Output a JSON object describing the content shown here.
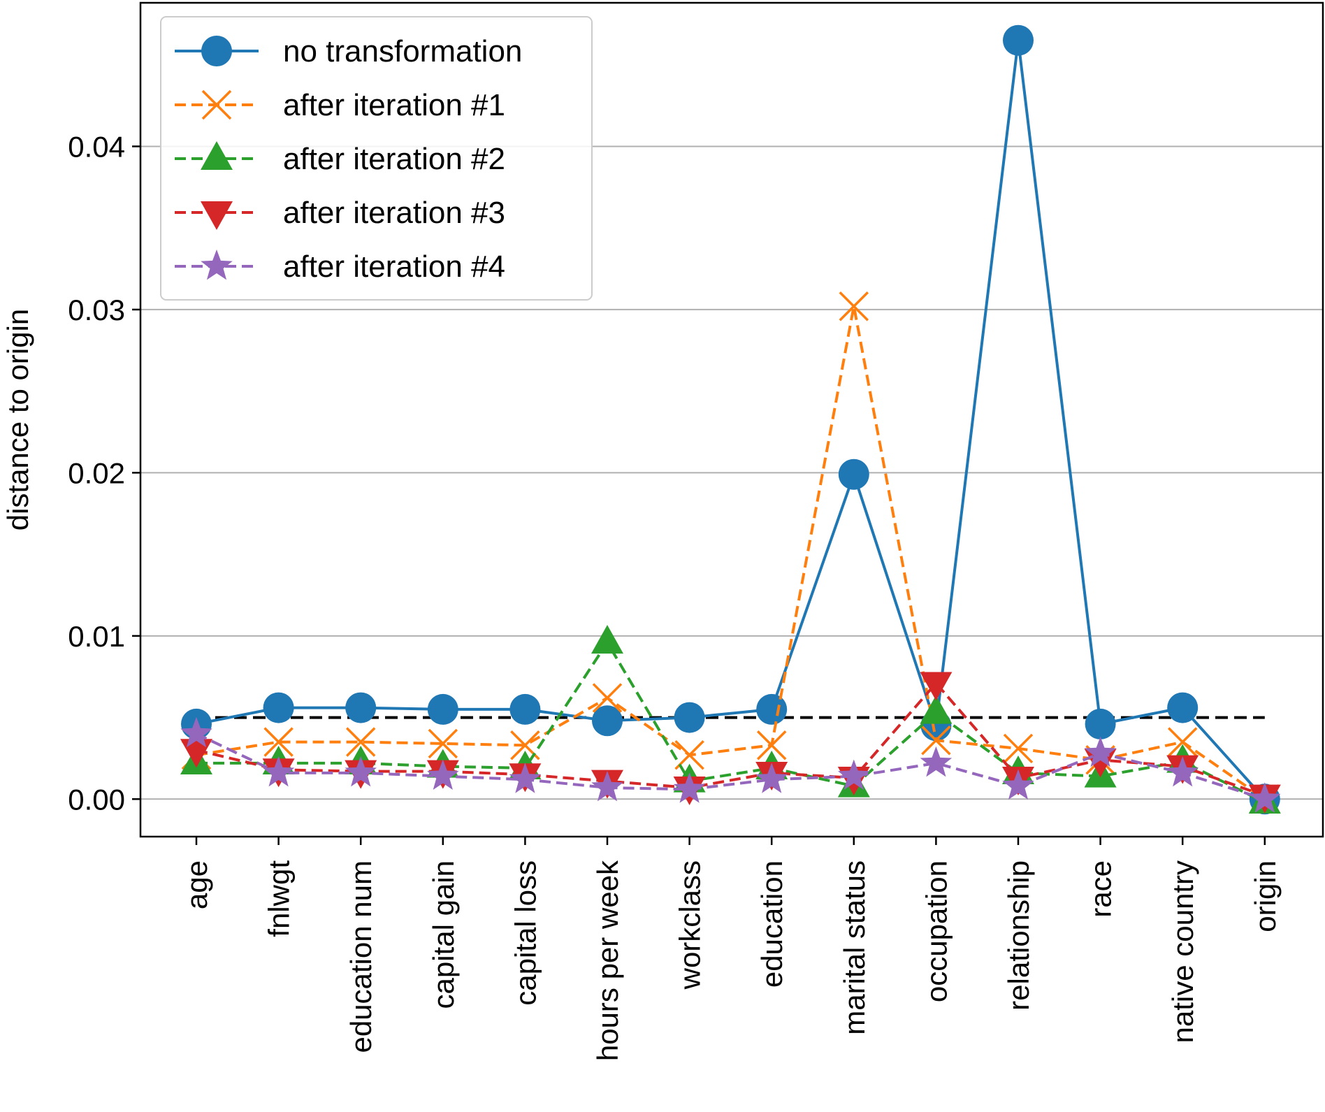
{
  "chart_data": {
    "type": "line",
    "title": "",
    "xlabel": "",
    "ylabel": "distance to origin",
    "categories": [
      "age",
      "fnlwgt",
      "education num",
      "capital gain",
      "capital loss",
      "hours per week",
      "workclass",
      "education",
      "marital status",
      "occupation",
      "relationship",
      "race",
      "native country",
      "origin"
    ],
    "ylim": [
      -0.0023,
      0.0488
    ],
    "yticks": [
      0.0,
      0.01,
      0.02,
      0.03,
      0.04
    ],
    "ytick_labels": [
      "0.00",
      "0.01",
      "0.02",
      "0.03",
      "0.04"
    ],
    "grid": "y",
    "legend_position": "top-left",
    "threshold": {
      "value": 0.005,
      "color": "#000000",
      "style": "dashed"
    },
    "series": [
      {
        "name": "no transformation",
        "color": "#1f77b4",
        "marker": "circle",
        "linestyle": "solid",
        "values": [
          0.0046,
          0.0056,
          0.0056,
          0.0055,
          0.0055,
          0.0048,
          0.005,
          0.0055,
          0.0199,
          0.0045,
          0.0465,
          0.0046,
          0.0056,
          0.0
        ]
      },
      {
        "name": "after iteration #1",
        "color": "#ff7f0e",
        "marker": "x",
        "linestyle": "dashed",
        "values": [
          0.0027,
          0.0035,
          0.0035,
          0.0034,
          0.0033,
          0.0062,
          0.0027,
          0.0033,
          0.0302,
          0.0036,
          0.0031,
          0.0024,
          0.0035,
          0.0
        ]
      },
      {
        "name": "after iteration #2",
        "color": "#2ca02c",
        "marker": "triangle-up",
        "linestyle": "dashed",
        "values": [
          0.0022,
          0.0022,
          0.0022,
          0.002,
          0.0019,
          0.0096,
          0.0011,
          0.0019,
          0.0008,
          0.0053,
          0.0016,
          0.0014,
          0.0023,
          -0.0002
        ]
      },
      {
        "name": "after iteration #3",
        "color": "#d62728",
        "marker": "triangle-down",
        "linestyle": "dashed",
        "values": [
          0.003,
          0.0018,
          0.0017,
          0.0017,
          0.0015,
          0.0011,
          0.0007,
          0.0016,
          0.0013,
          0.0071,
          0.0013,
          0.0024,
          0.002,
          0.0002
        ]
      },
      {
        "name": "after iteration #4",
        "color": "#9467bd",
        "marker": "star",
        "linestyle": "dashed",
        "values": [
          0.004,
          0.0016,
          0.0016,
          0.0014,
          0.0012,
          0.0007,
          0.0006,
          0.0012,
          0.0014,
          0.0022,
          0.0008,
          0.0028,
          0.0016,
          0.0
        ]
      }
    ]
  }
}
